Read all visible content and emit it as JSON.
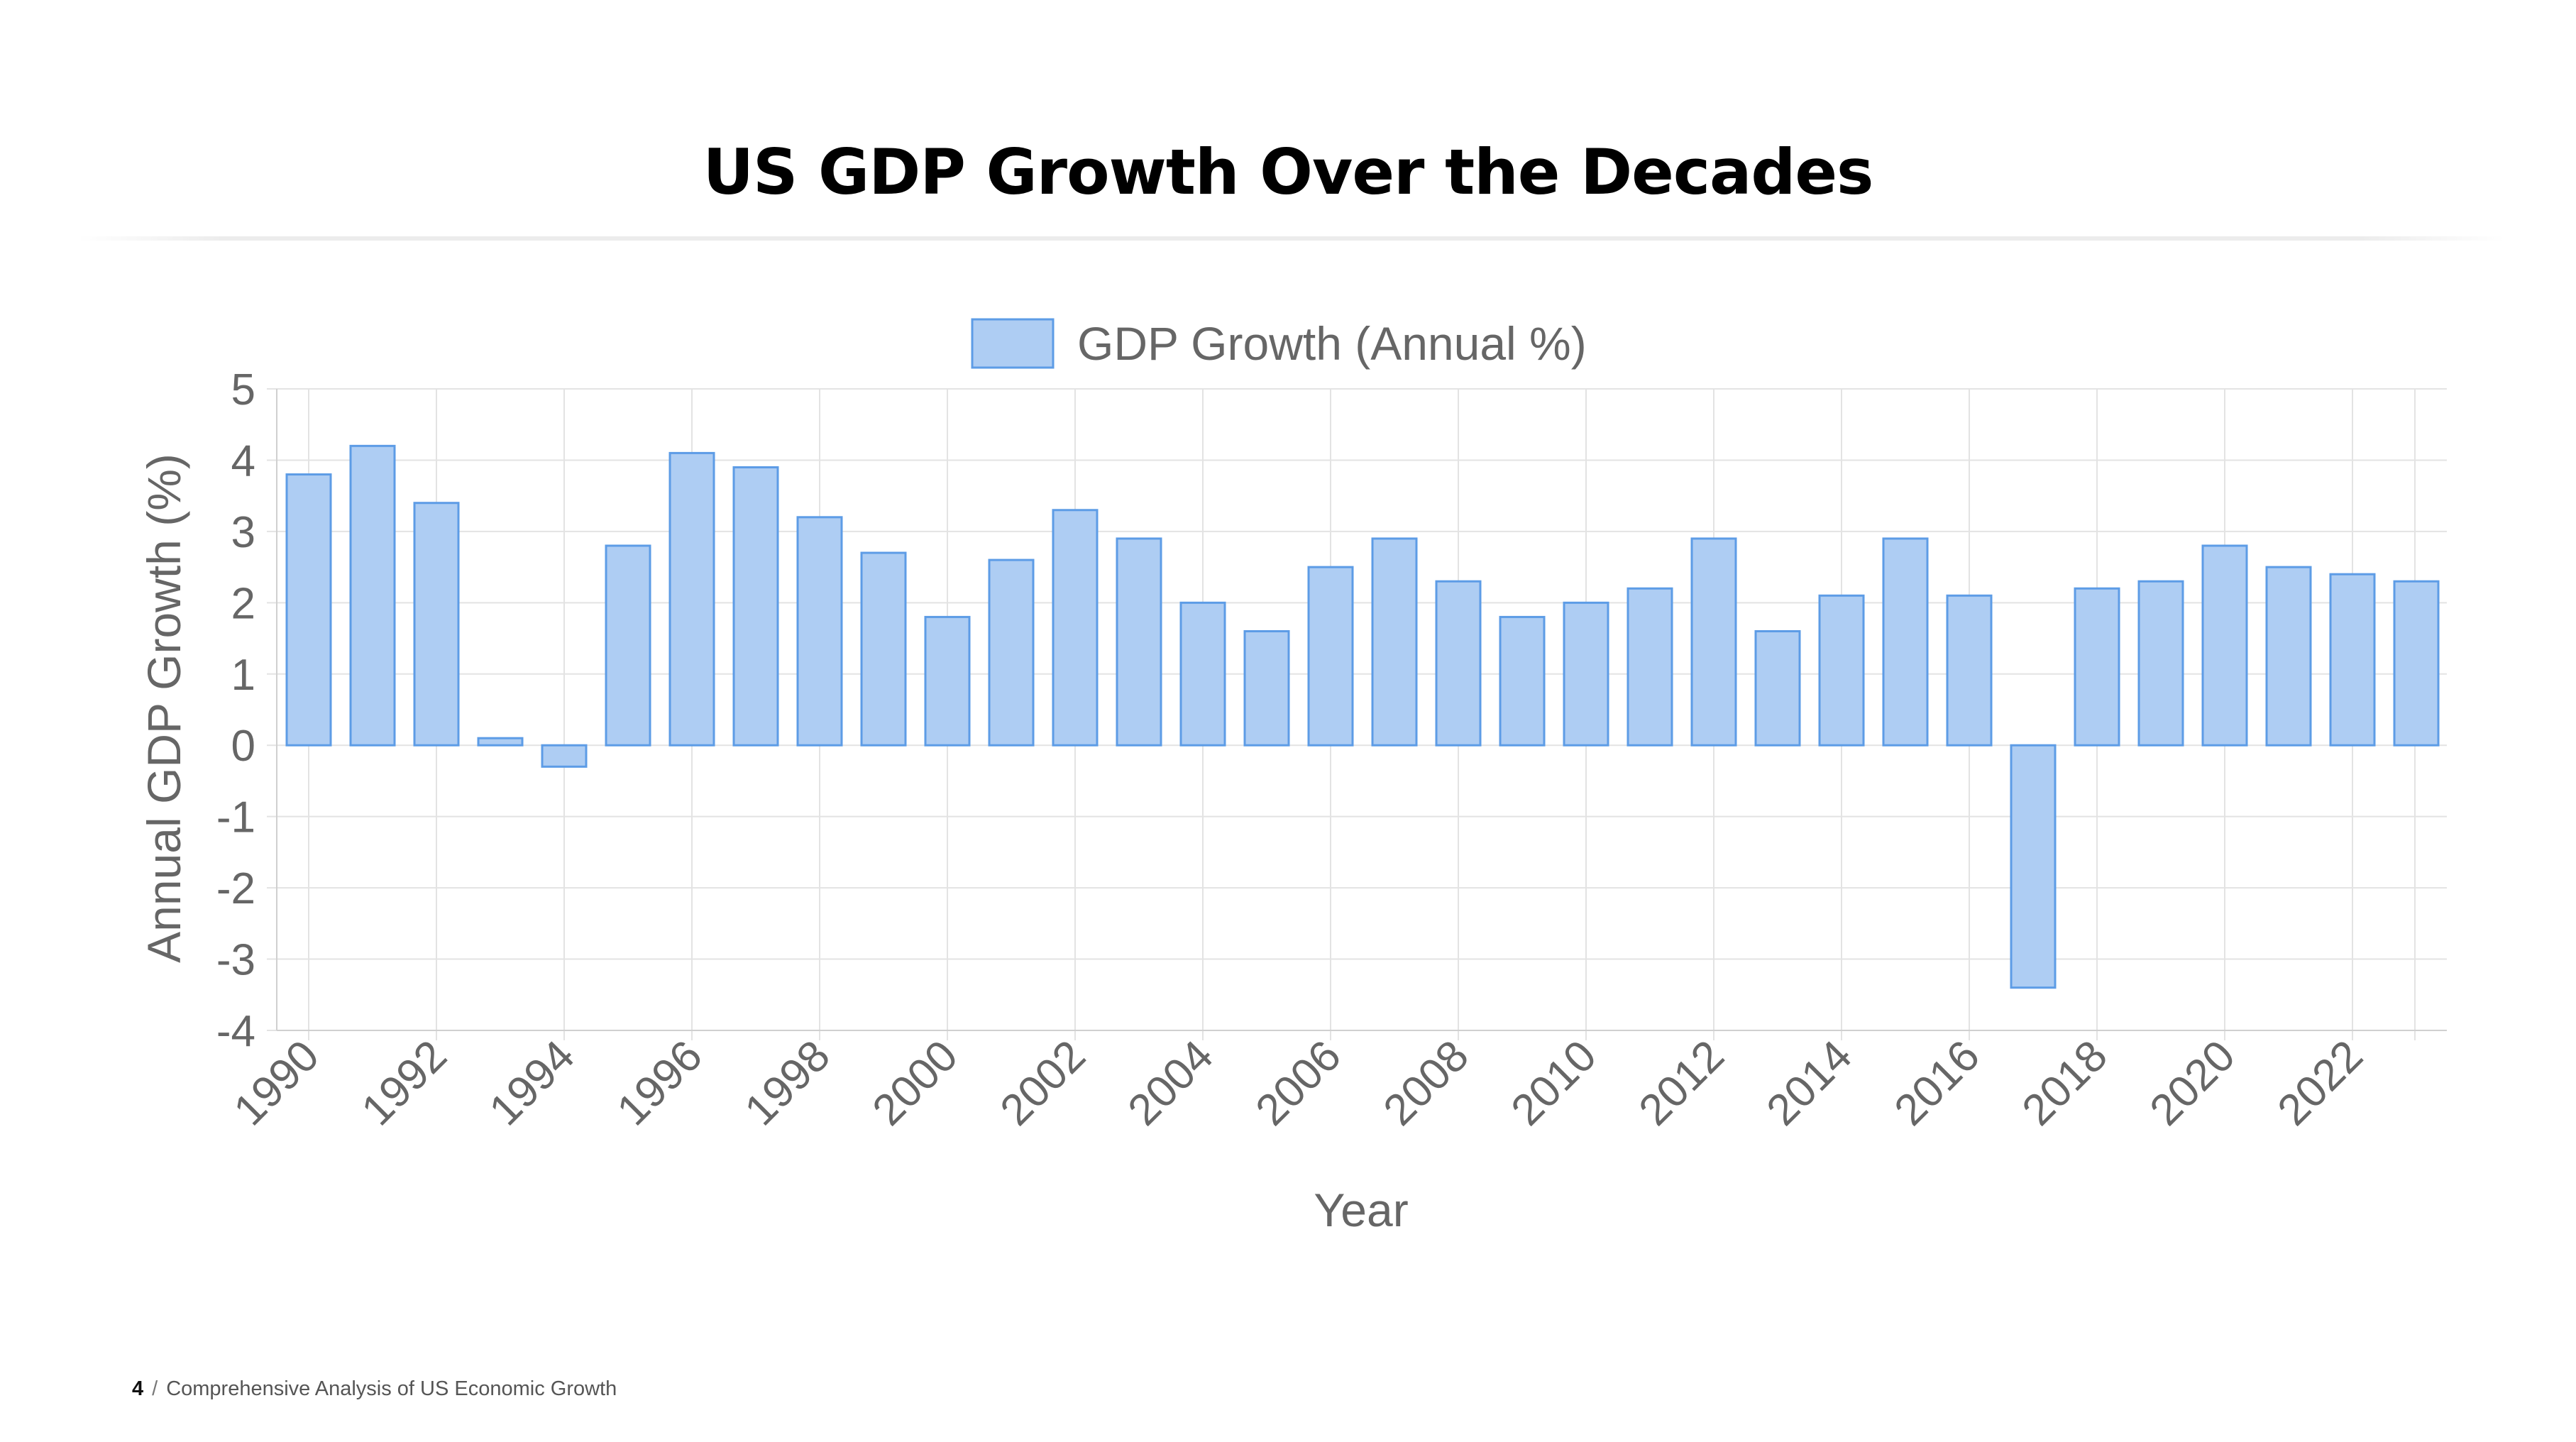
{
  "slide": {
    "title": "US GDP Growth Over the Decades",
    "page_number": "4",
    "separator": "/",
    "footer_text": "Comprehensive Analysis of US Economic Growth"
  },
  "colors": {
    "bar_fill": "#aecdf3",
    "bar_stroke": "#5d9ce6",
    "grid": "#e3e3e3",
    "axis_text": "#666666"
  },
  "chart_data": {
    "type": "bar",
    "title": "",
    "xlabel": "Year",
    "ylabel": "Annual GDP Growth (%)",
    "ylim": [
      -4,
      5
    ],
    "yticks": [
      5,
      4,
      3,
      2,
      1,
      0,
      -1,
      -2,
      -3,
      -4
    ],
    "ytick_labels": [
      "5",
      "4",
      "3",
      "2",
      "1",
      "0",
      "-1",
      "-2",
      "-3",
      "-4"
    ],
    "legend": {
      "position": "top",
      "label": "GDP Growth (Annual %)"
    },
    "grid": true,
    "categories": [
      "1990",
      "1991",
      "1992",
      "1993",
      "1994",
      "1995",
      "1996",
      "1997",
      "1998",
      "1999",
      "2000",
      "2001",
      "2002",
      "2003",
      "2004",
      "2005",
      "2006",
      "2007",
      "2008",
      "2009",
      "2010",
      "2011",
      "2012",
      "2013",
      "2014",
      "2015",
      "2016",
      "2017",
      "2018",
      "2019",
      "2020",
      "2021",
      "2022",
      "2023"
    ],
    "xtick_labels": [
      "1990",
      "1992",
      "1994",
      "1996",
      "1998",
      "2000",
      "2002",
      "2004",
      "2006",
      "2008",
      "2010",
      "2012",
      "2014",
      "2016",
      "2018",
      "2020",
      "2022"
    ],
    "series": [
      {
        "name": "GDP Growth (Annual %)",
        "values": [
          3.8,
          4.2,
          3.4,
          0.1,
          -0.3,
          2.8,
          4.1,
          3.9,
          3.2,
          2.7,
          1.8,
          2.6,
          3.3,
          2.9,
          2.0,
          1.6,
          2.5,
          2.9,
          2.3,
          1.8,
          2.0,
          2.2,
          2.9,
          1.6,
          2.1,
          2.9,
          2.1,
          -3.4,
          2.2,
          2.3,
          2.8,
          2.5,
          2.4,
          2.3
        ]
      }
    ]
  }
}
